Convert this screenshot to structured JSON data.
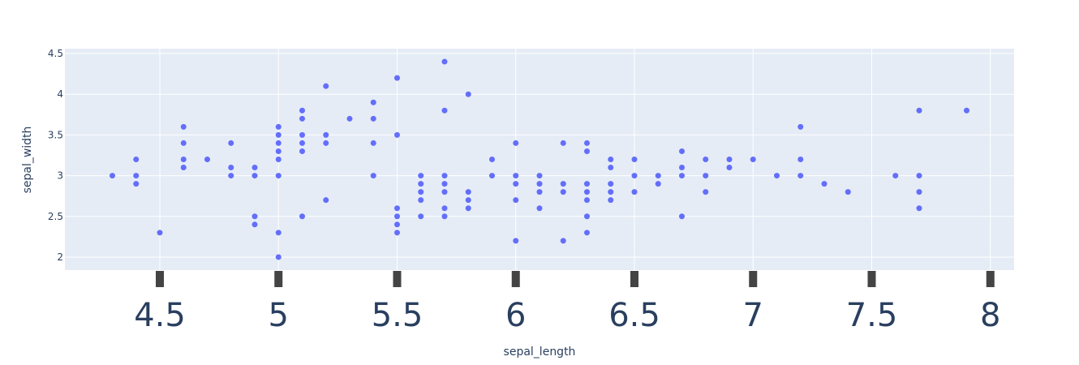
{
  "chart_data": {
    "type": "scatter",
    "title": "",
    "xlabel": "sepal_length",
    "ylabel": "sepal_width",
    "xlim": [
      4.1,
      8.1
    ],
    "ylim": [
      1.84,
      4.56
    ],
    "xticks": [
      "4.5",
      "5",
      "5.5",
      "6",
      "6.5",
      "7",
      "7.5",
      "8"
    ],
    "xtick_values": [
      4.5,
      5,
      5.5,
      6,
      6.5,
      7,
      7.5,
      8
    ],
    "yticks": [
      "2",
      "2.5",
      "3",
      "3.5",
      "4",
      "4.5"
    ],
    "ytick_values": [
      2,
      2.5,
      3,
      3.5,
      4,
      4.5
    ],
    "grid": true,
    "colors": {
      "marker": "#636efa",
      "plot_bg": "#e5ecf6",
      "grid": "#ffffff",
      "text": "#2a3f5f",
      "tick_mark": "#444444"
    },
    "points": [
      [
        4.3,
        3.0
      ],
      [
        4.4,
        2.9
      ],
      [
        4.4,
        3.0
      ],
      [
        4.4,
        3.2
      ],
      [
        4.5,
        2.3
      ],
      [
        4.6,
        3.1
      ],
      [
        4.6,
        3.2
      ],
      [
        4.6,
        3.4
      ],
      [
        4.6,
        3.6
      ],
      [
        4.7,
        3.2
      ],
      [
        4.8,
        3.0
      ],
      [
        4.8,
        3.1
      ],
      [
        4.8,
        3.4
      ],
      [
        4.9,
        2.4
      ],
      [
        4.9,
        2.5
      ],
      [
        4.9,
        3.0
      ],
      [
        4.9,
        3.1
      ],
      [
        5.0,
        2.0
      ],
      [
        5.0,
        2.3
      ],
      [
        5.0,
        3.0
      ],
      [
        5.0,
        3.2
      ],
      [
        5.0,
        3.3
      ],
      [
        5.0,
        3.4
      ],
      [
        5.0,
        3.5
      ],
      [
        5.0,
        3.6
      ],
      [
        5.1,
        2.5
      ],
      [
        5.1,
        3.3
      ],
      [
        5.1,
        3.4
      ],
      [
        5.1,
        3.5
      ],
      [
        5.1,
        3.7
      ],
      [
        5.1,
        3.8
      ],
      [
        5.2,
        2.7
      ],
      [
        5.2,
        3.4
      ],
      [
        5.2,
        3.5
      ],
      [
        5.2,
        4.1
      ],
      [
        5.3,
        3.7
      ],
      [
        5.4,
        3.0
      ],
      [
        5.4,
        3.4
      ],
      [
        5.4,
        3.7
      ],
      [
        5.4,
        3.9
      ],
      [
        5.5,
        2.3
      ],
      [
        5.5,
        2.4
      ],
      [
        5.5,
        2.5
      ],
      [
        5.5,
        2.6
      ],
      [
        5.5,
        3.5
      ],
      [
        5.5,
        4.2
      ],
      [
        5.6,
        2.5
      ],
      [
        5.6,
        2.7
      ],
      [
        5.6,
        2.8
      ],
      [
        5.6,
        2.9
      ],
      [
        5.6,
        3.0
      ],
      [
        5.7,
        2.5
      ],
      [
        5.7,
        2.6
      ],
      [
        5.7,
        2.8
      ],
      [
        5.7,
        2.9
      ],
      [
        5.7,
        3.0
      ],
      [
        5.7,
        3.8
      ],
      [
        5.7,
        4.4
      ],
      [
        5.8,
        2.6
      ],
      [
        5.8,
        2.7
      ],
      [
        5.8,
        2.8
      ],
      [
        5.8,
        4.0
      ],
      [
        5.9,
        3.0
      ],
      [
        5.9,
        3.2
      ],
      [
        6.0,
        2.2
      ],
      [
        6.0,
        2.7
      ],
      [
        6.0,
        2.9
      ],
      [
        6.0,
        3.0
      ],
      [
        6.0,
        3.4
      ],
      [
        6.1,
        2.6
      ],
      [
        6.1,
        2.8
      ],
      [
        6.1,
        2.9
      ],
      [
        6.1,
        3.0
      ],
      [
        6.2,
        2.2
      ],
      [
        6.2,
        2.8
      ],
      [
        6.2,
        2.9
      ],
      [
        6.2,
        3.4
      ],
      [
        6.3,
        2.3
      ],
      [
        6.3,
        2.5
      ],
      [
        6.3,
        2.7
      ],
      [
        6.3,
        2.8
      ],
      [
        6.3,
        2.9
      ],
      [
        6.3,
        3.3
      ],
      [
        6.3,
        3.4
      ],
      [
        6.4,
        2.7
      ],
      [
        6.4,
        2.8
      ],
      [
        6.4,
        2.9
      ],
      [
        6.4,
        3.1
      ],
      [
        6.4,
        3.2
      ],
      [
        6.5,
        2.8
      ],
      [
        6.5,
        3.0
      ],
      [
        6.5,
        3.2
      ],
      [
        6.6,
        2.9
      ],
      [
        6.6,
        3.0
      ],
      [
        6.7,
        2.5
      ],
      [
        6.7,
        3.0
      ],
      [
        6.7,
        3.1
      ],
      [
        6.7,
        3.3
      ],
      [
        6.8,
        2.8
      ],
      [
        6.8,
        3.0
      ],
      [
        6.8,
        3.2
      ],
      [
        6.9,
        3.1
      ],
      [
        6.9,
        3.2
      ],
      [
        7.0,
        3.2
      ],
      [
        7.1,
        3.0
      ],
      [
        7.2,
        3.0
      ],
      [
        7.2,
        3.2
      ],
      [
        7.2,
        3.6
      ],
      [
        7.3,
        2.9
      ],
      [
        7.4,
        2.8
      ],
      [
        7.6,
        3.0
      ],
      [
        7.7,
        2.6
      ],
      [
        7.7,
        2.8
      ],
      [
        7.7,
        3.0
      ],
      [
        7.7,
        3.8
      ],
      [
        7.9,
        3.8
      ]
    ]
  }
}
